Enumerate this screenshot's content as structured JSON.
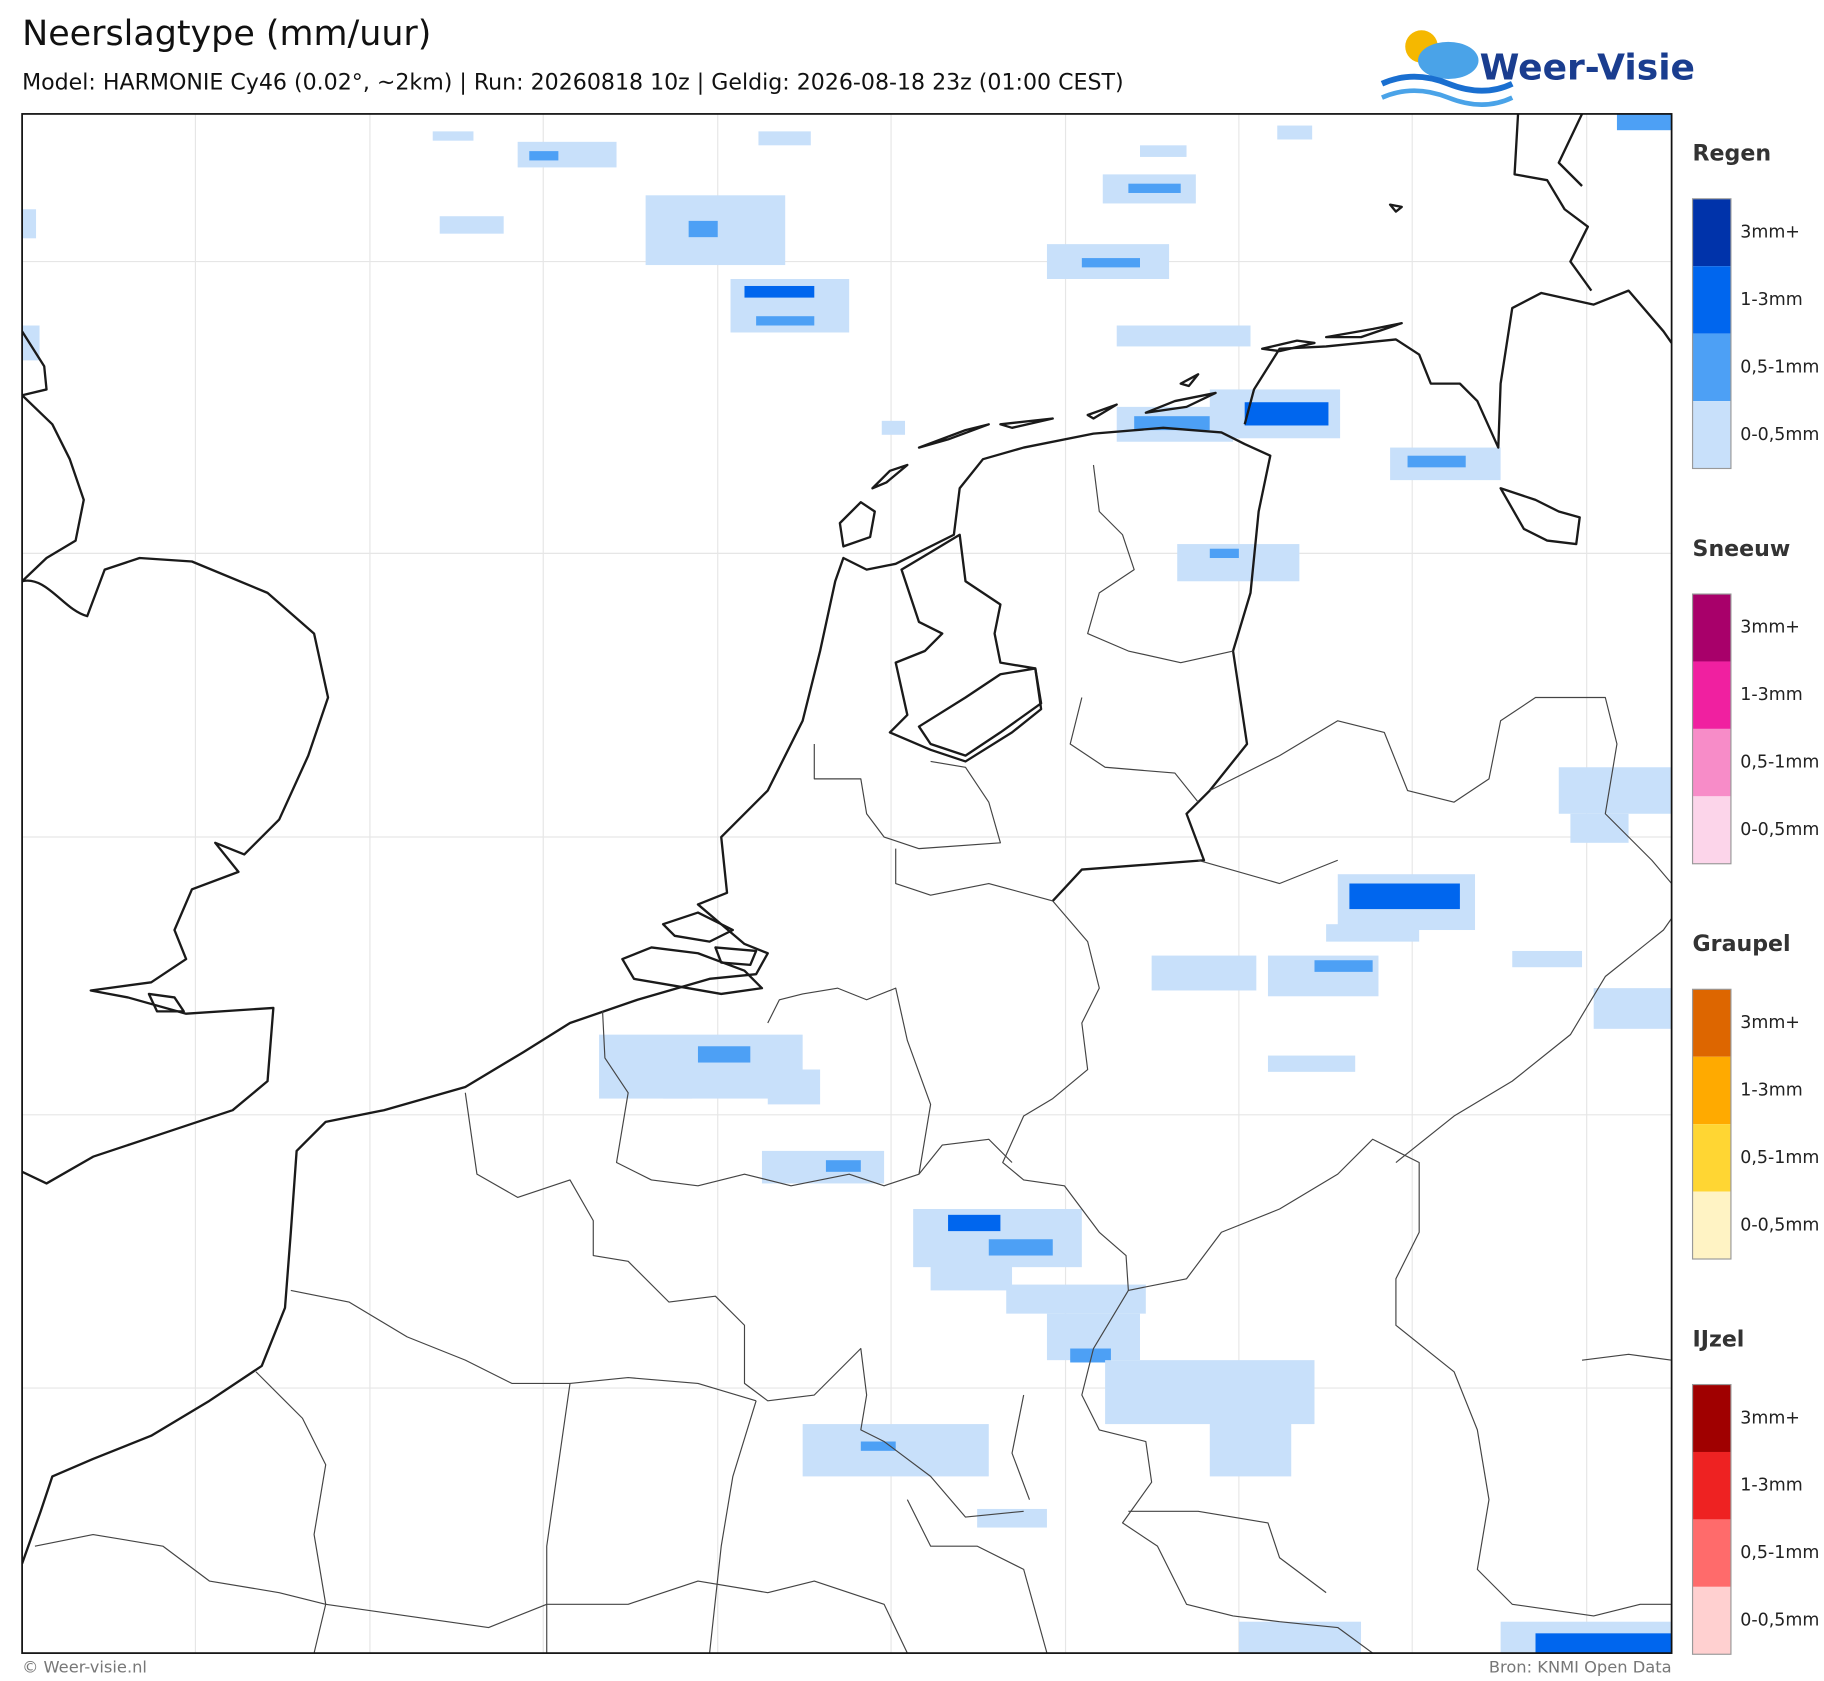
{
  "header": {
    "title": "Neerslagtype (mm/uur)",
    "subtitle": "Model: HARMONIE Cy46 (0.02°, ~2km)  |  Run: 20260818 10z  |  Geldig: 2026-08-18 23z (01:00 CEST)"
  },
  "logo": {
    "text": "Weer-Visie"
  },
  "legend": [
    {
      "title": "Regen",
      "items": [
        {
          "label": "3mm+",
          "color": "#0033aa"
        },
        {
          "label": "1-3mm",
          "color": "#0066ee"
        },
        {
          "label": "0,5-1mm",
          "color": "#4da0f5"
        },
        {
          "label": "0-0,5mm",
          "color": "#c8e0fa"
        }
      ]
    },
    {
      "title": "Sneeuw",
      "items": [
        {
          "label": "3mm+",
          "color": "#a8006a"
        },
        {
          "label": "1-3mm",
          "color": "#f020a0"
        },
        {
          "label": "0,5-1mm",
          "color": "#f78cc8"
        },
        {
          "label": "0-0,5mm",
          "color": "#fcd5ea"
        }
      ]
    },
    {
      "title": "Graupel",
      "items": [
        {
          "label": "3mm+",
          "color": "#dd6600"
        },
        {
          "label": "1-3mm",
          "color": "#ffaa00"
        },
        {
          "label": "0,5-1mm",
          "color": "#ffd633"
        },
        {
          "label": "0-0,5mm",
          "color": "#fff3c4"
        }
      ]
    },
    {
      "title": "IJzel",
      "items": [
        {
          "label": "3mm+",
          "color": "#a00000"
        },
        {
          "label": "1-3mm",
          "color": "#ee2222"
        },
        {
          "label": "0,5-1mm",
          "color": "#ff6b6b"
        },
        {
          "label": "0-0,5mm",
          "color": "#ffd0d0"
        }
      ]
    }
  ],
  "footer": {
    "left": "© Weer-visie.nl",
    "right": "Bron: KNMI Open Data"
  }
}
